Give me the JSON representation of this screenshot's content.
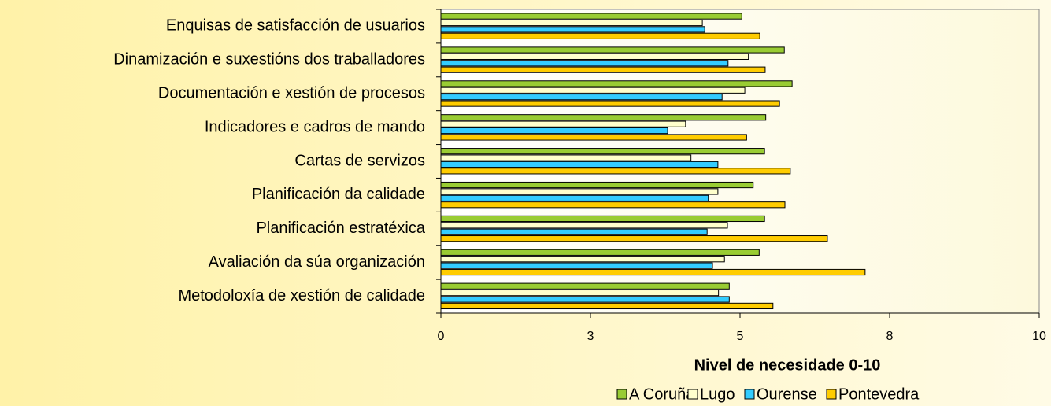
{
  "chart_data": {
    "type": "bar",
    "orientation": "horizontal",
    "categories": [
      "Enquisas de satisfacción de usuarios",
      "Dinamización e suxestións dos traballadores",
      "Documentación e xestión de procesos",
      "Indicadores e cadros de mando",
      "Cartas de servizos",
      "Planificación da calidade",
      "Planificación estratéxica",
      "Avaliación da súa organización",
      "Metodoloxía de xestión de calidade"
    ],
    "series": [
      {
        "name": "A Coruña",
        "color": "#99cc33",
        "values": [
          5.03,
          5.74,
          5.87,
          5.43,
          5.41,
          5.22,
          5.41,
          5.32,
          4.82
        ]
      },
      {
        "name": "Lugo",
        "color": "#ffffcc",
        "values": [
          4.37,
          5.14,
          5.08,
          4.09,
          4.18,
          4.63,
          4.79,
          4.74,
          4.64
        ]
      },
      {
        "name": "Ourense",
        "color": "#33ccff",
        "values": [
          4.41,
          4.8,
          4.7,
          3.79,
          4.63,
          4.47,
          4.45,
          4.54,
          4.82
        ]
      },
      {
        "name": "Pontevedra",
        "color": "#ffcc00",
        "values": [
          5.33,
          5.42,
          5.66,
          5.11,
          5.84,
          5.75,
          6.46,
          7.09,
          5.55
        ]
      }
    ],
    "xlabel": "Nivel de necesidade 0-10",
    "xlim": [
      0,
      10
    ],
    "xticks": [
      0,
      {
        "value": 2.5,
        "label": "3"
      },
      5,
      {
        "value": 7.5,
        "label": "8"
      },
      10
    ],
    "legend": "bottom"
  }
}
